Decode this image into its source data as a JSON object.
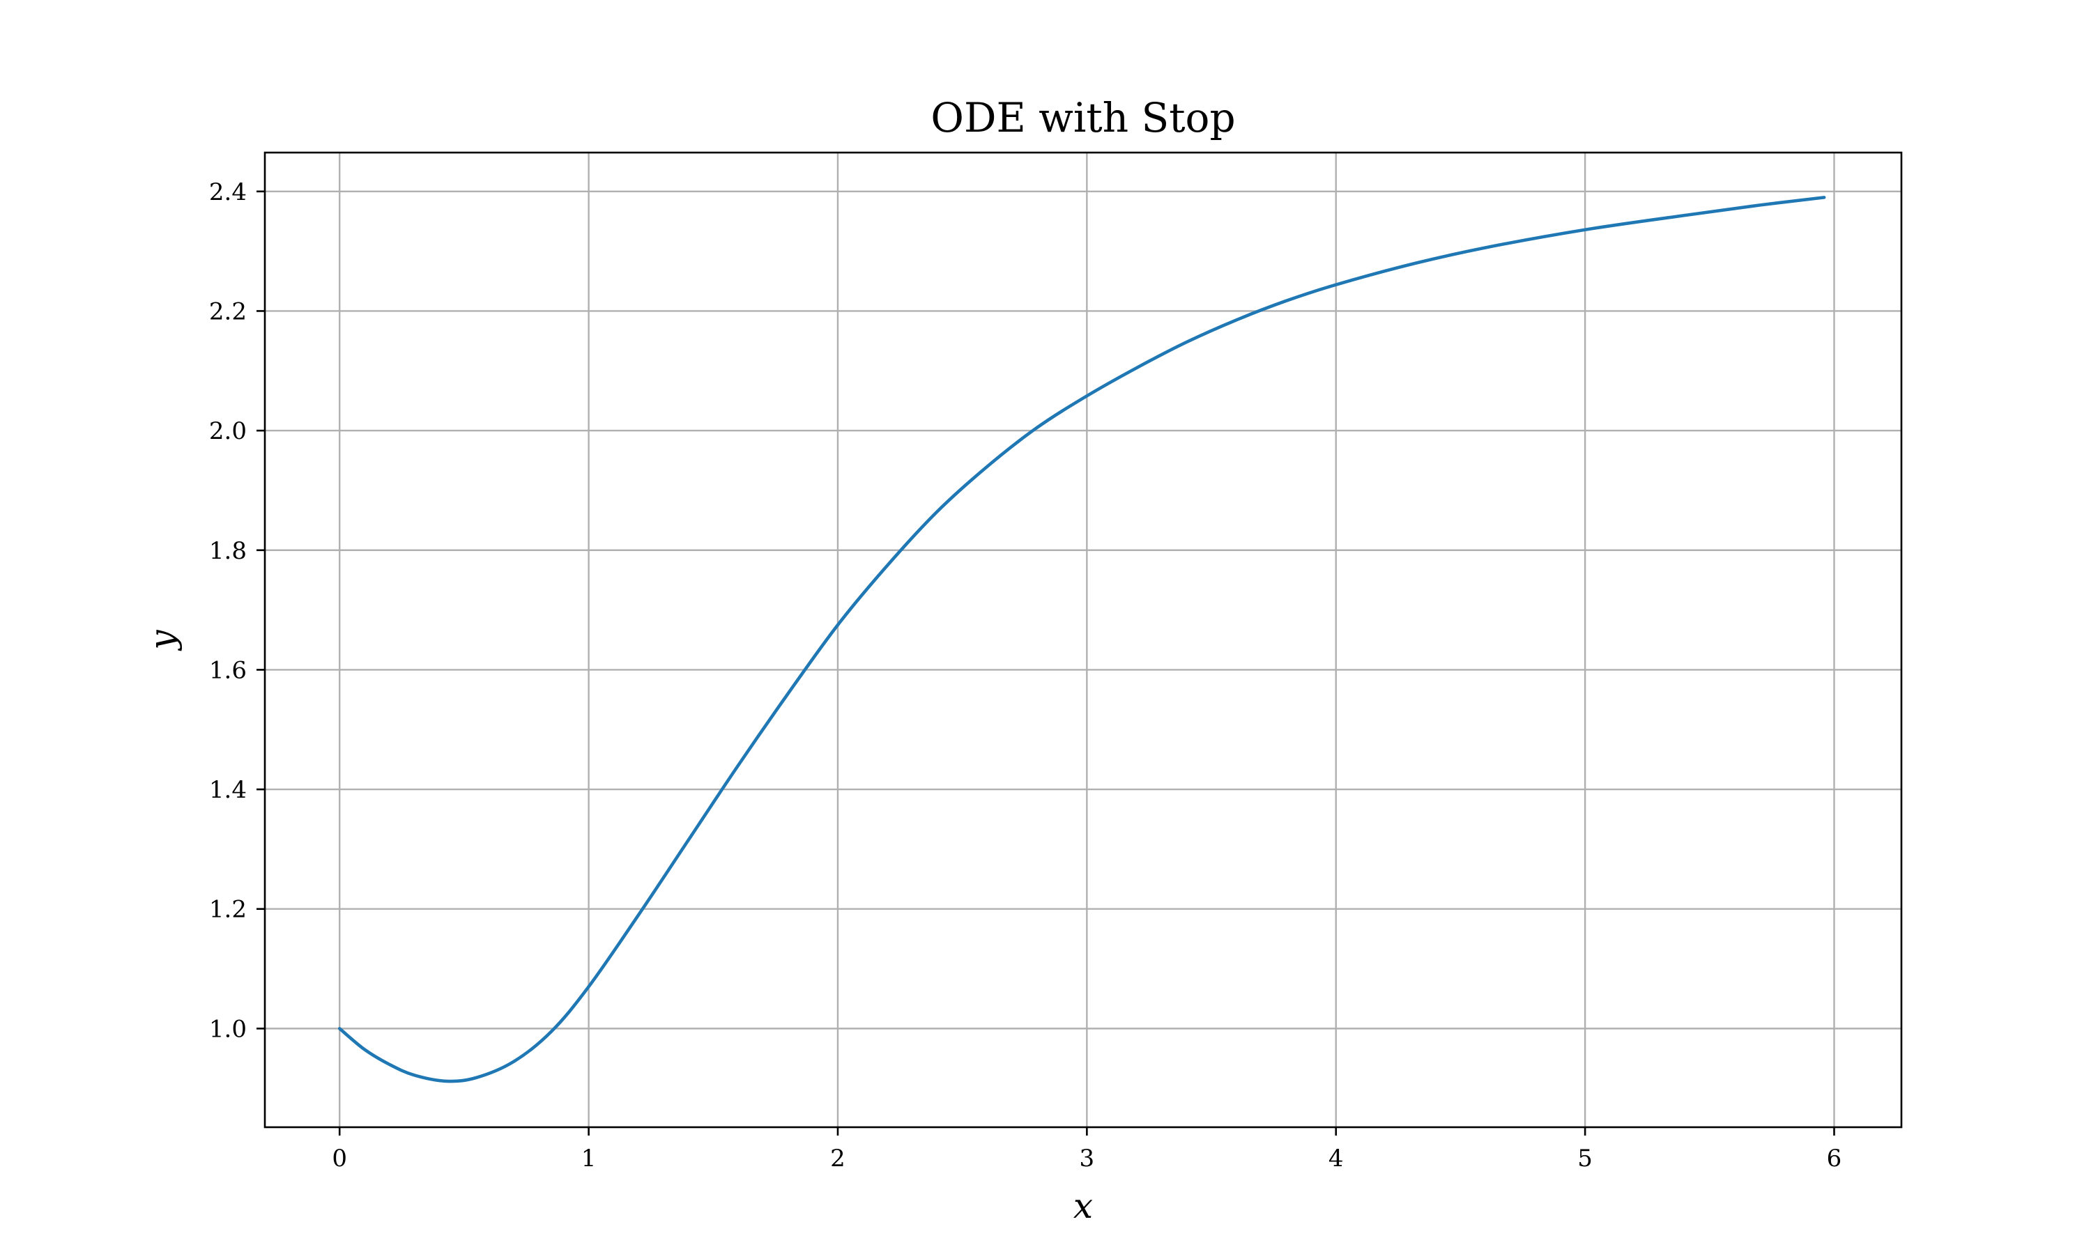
{
  "chart_data": {
    "type": "line",
    "title": "ODE with Stop",
    "xlabel": "x",
    "ylabel": "y",
    "xlim": [
      -0.3,
      6.27
    ],
    "ylim": [
      0.835,
      2.465
    ],
    "xticks": [
      0,
      1,
      2,
      3,
      4,
      5,
      6
    ],
    "xtick_labels": [
      "0",
      "1",
      "2",
      "3",
      "4",
      "5",
      "6"
    ],
    "yticks": [
      1.0,
      1.2,
      1.4,
      1.6,
      1.8,
      2.0,
      2.2,
      2.4
    ],
    "ytick_labels": [
      "1.0",
      "1.2",
      "1.4",
      "1.6",
      "1.8",
      "2.0",
      "2.2",
      "2.4"
    ],
    "grid": true,
    "line_color": "#1f77b4",
    "series": [
      {
        "x": [
          0.0,
          0.1,
          0.2,
          0.3,
          0.43,
          0.55,
          0.7,
          0.85,
          1.0,
          1.2,
          1.4,
          1.6,
          1.8,
          2.0,
          2.2,
          2.4,
          2.6,
          2.8,
          3.0,
          3.2,
          3.4,
          3.6,
          3.8,
          4.0,
          4.3,
          4.6,
          5.0,
          5.4,
          5.7,
          5.96
        ],
        "y": [
          1.0,
          0.965,
          0.94,
          0.922,
          0.912,
          0.918,
          0.945,
          0.995,
          1.07,
          1.19,
          1.315,
          1.44,
          1.56,
          1.675,
          1.775,
          1.865,
          1.94,
          2.005,
          2.058,
          2.105,
          2.148,
          2.185,
          2.217,
          2.244,
          2.278,
          2.306,
          2.336,
          2.36,
          2.377,
          2.39
        ]
      }
    ]
  }
}
